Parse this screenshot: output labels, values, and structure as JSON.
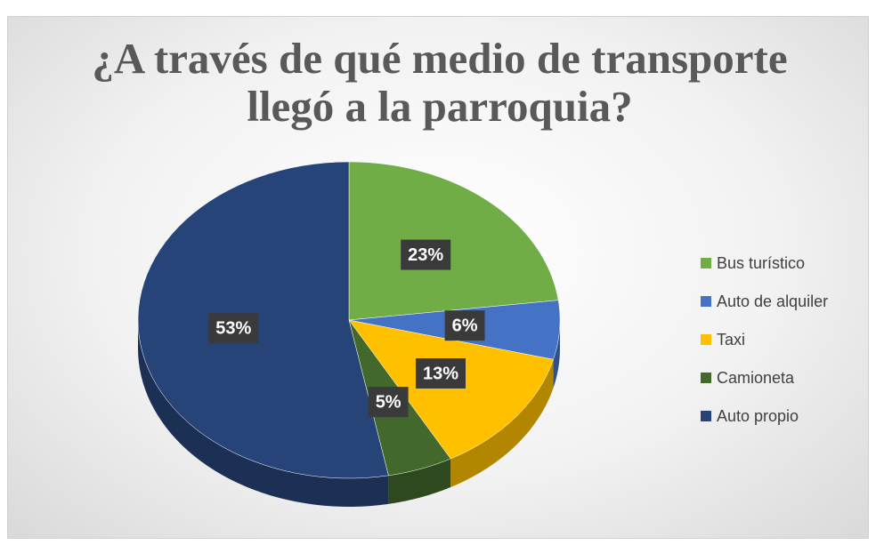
{
  "chart_data": {
    "type": "pie",
    "title": "¿A través de qué medio de transporte llegó a la parroquia?",
    "categories": [
      "Bus turístico",
      "Auto de alquiler",
      "Taxi",
      "Camioneta",
      "Auto propio"
    ],
    "values": [
      23,
      6,
      13,
      5,
      53
    ],
    "value_labels": [
      "23%",
      "6%",
      "13%",
      "5%",
      "53%"
    ],
    "colors": [
      "#70ad47",
      "#4472c4",
      "#ffc000",
      "#43682b",
      "#264478"
    ],
    "legend": "right"
  }
}
